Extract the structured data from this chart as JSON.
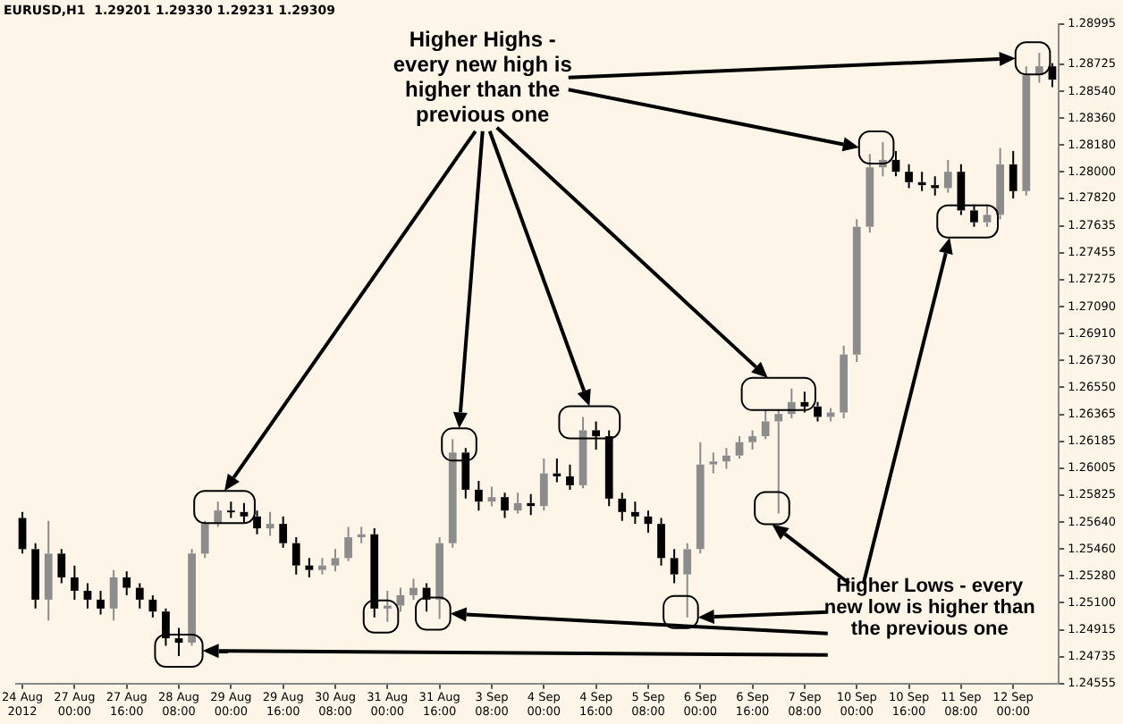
{
  "chart_data": {
    "type": "candlestick",
    "title": "EURUSD,H1  1.29201 1.29330 1.29231 1.29309",
    "categories": [
      "24 Aug 2012",
      null,
      null,
      null,
      "27 Aug 00:00",
      null,
      null,
      null,
      "27 Aug 16:00",
      null,
      null,
      null,
      "28 Aug 08:00",
      null,
      null,
      null,
      "29 Aug 00:00",
      null,
      null,
      null,
      "29 Aug 16:00",
      null,
      null,
      null,
      "30 Aug 08:00",
      null,
      null,
      null,
      "31 Aug 00:00",
      null,
      null,
      null,
      "31 Aug 16:00",
      null,
      null,
      null,
      "3 Sep 08:00",
      null,
      null,
      null,
      "4 Sep 00:00",
      null,
      null,
      null,
      "4 Sep 16:00",
      null,
      null,
      null,
      "5 Sep 08:00",
      null,
      null,
      null,
      "6 Sep 00:00",
      null,
      null,
      null,
      "6 Sep 16:00",
      null,
      null,
      null,
      "7 Sep 08:00",
      null,
      null,
      null,
      "10 Sep 00:00",
      null,
      null,
      null,
      "10 Sep 16:00",
      null,
      null,
      null,
      "11 Sep 08:00",
      null,
      null,
      null,
      "12 Sep 00:00",
      null,
      null,
      null
    ],
    "ohlc": [
      [
        1.2567,
        1.2571,
        1.2543,
        1.2546
      ],
      [
        1.2546,
        1.255,
        1.2506,
        1.2512
      ],
      [
        1.2512,
        1.2565,
        1.2498,
        1.2543
      ],
      [
        1.2543,
        1.2546,
        1.2523,
        1.2527
      ],
      [
        1.2527,
        1.2535,
        1.2512,
        1.2518
      ],
      [
        1.2518,
        1.2523,
        1.2506,
        1.2512
      ],
      [
        1.2512,
        1.2518,
        1.2502,
        1.2506
      ],
      [
        1.2506,
        1.2532,
        1.2498,
        1.2527
      ],
      [
        1.2527,
        1.2531,
        1.2515,
        1.252
      ],
      [
        1.252,
        1.2523,
        1.2506,
        1.2512
      ],
      [
        1.2512,
        1.2515,
        1.25,
        1.2504
      ],
      [
        1.2504,
        1.2506,
        1.2481,
        1.2486
      ],
      [
        1.2486,
        1.2493,
        1.2474,
        1.2483
      ],
      [
        1.2483,
        1.2546,
        1.2481,
        1.2543
      ],
      [
        1.2543,
        1.2565,
        1.254,
        1.2563
      ],
      [
        1.2563,
        1.2578,
        1.2561,
        1.2572
      ],
      [
        1.2572,
        1.2578,
        1.2567,
        1.2571
      ],
      [
        1.2571,
        1.2577,
        1.2563,
        1.2568
      ],
      [
        1.2568,
        1.2572,
        1.2556,
        1.256
      ],
      [
        1.256,
        1.2571,
        1.2555,
        1.2563
      ],
      [
        1.2563,
        1.2568,
        1.2547,
        1.255
      ],
      [
        1.255,
        1.2554,
        1.2529,
        1.2535
      ],
      [
        1.2535,
        1.254,
        1.2527,
        1.2532
      ],
      [
        1.2532,
        1.254,
        1.2529,
        1.2535
      ],
      [
        1.2535,
        1.2546,
        1.2531,
        1.254
      ],
      [
        1.254,
        1.2561,
        1.2538,
        1.2554
      ],
      [
        1.2554,
        1.2561,
        1.255,
        1.2556
      ],
      [
        1.2556,
        1.256,
        1.25,
        1.2506
      ],
      [
        1.2506,
        1.2518,
        1.2497,
        1.2508
      ],
      [
        1.2508,
        1.252,
        1.2504,
        1.2515
      ],
      [
        1.2515,
        1.2526,
        1.2512,
        1.252
      ],
      [
        1.252,
        1.2523,
        1.2504,
        1.2512
      ],
      [
        1.2512,
        1.2554,
        1.2499,
        1.255
      ],
      [
        1.255,
        1.262,
        1.2547,
        1.2611
      ],
      [
        1.2611,
        1.2614,
        1.258,
        1.2586
      ],
      [
        1.2586,
        1.2592,
        1.2572,
        1.2578
      ],
      [
        1.2578,
        1.2588,
        1.2575,
        1.2581
      ],
      [
        1.2581,
        1.2584,
        1.2567,
        1.2572
      ],
      [
        1.2572,
        1.2584,
        1.257,
        1.2577
      ],
      [
        1.2577,
        1.2583,
        1.2569,
        1.2575
      ],
      [
        1.2575,
        1.2607,
        1.2572,
        1.2597
      ],
      [
        1.2597,
        1.2607,
        1.2591,
        1.2595
      ],
      [
        1.2595,
        1.2603,
        1.2586,
        1.2589
      ],
      [
        1.2589,
        1.2635,
        1.2587,
        1.2626
      ],
      [
        1.2626,
        1.2632,
        1.2613,
        1.2622
      ],
      [
        1.2622,
        1.2626,
        1.2575,
        1.258
      ],
      [
        1.258,
        1.2584,
        1.2565,
        1.2571
      ],
      [
        1.2571,
        1.2578,
        1.2563,
        1.2568
      ],
      [
        1.2568,
        1.2572,
        1.2557,
        1.2563
      ],
      [
        1.2563,
        1.2567,
        1.2535,
        1.254
      ],
      [
        1.254,
        1.2546,
        1.2523,
        1.2529
      ],
      [
        1.2529,
        1.255,
        1.25,
        1.2546
      ],
      [
        1.2546,
        1.2618,
        1.2543,
        1.2603
      ],
      [
        1.2603,
        1.2611,
        1.2597,
        1.2605
      ],
      [
        1.2605,
        1.2614,
        1.26,
        1.2609
      ],
      [
        1.2609,
        1.2622,
        1.2607,
        1.2618
      ],
      [
        1.2618,
        1.2626,
        1.2613,
        1.2622
      ],
      [
        1.2622,
        1.264,
        1.262,
        1.2632
      ],
      [
        1.2632,
        1.264,
        1.257,
        1.2637
      ],
      [
        1.2637,
        1.2654,
        1.2634,
        1.2645
      ],
      [
        1.2645,
        1.2652,
        1.2638,
        1.2642
      ],
      [
        1.2642,
        1.2645,
        1.2632,
        1.2635
      ],
      [
        1.2635,
        1.2641,
        1.2632,
        1.2638
      ],
      [
        1.2638,
        1.2683,
        1.2634,
        1.2677
      ],
      [
        1.2677,
        1.2768,
        1.2672,
        1.2763
      ],
      [
        1.2763,
        1.2812,
        1.2759,
        1.2803
      ],
      [
        1.2803,
        1.282,
        1.2797,
        1.2808
      ],
      [
        1.2808,
        1.2814,
        1.2797,
        1.28
      ],
      [
        1.28,
        1.2805,
        1.2789,
        1.2793
      ],
      [
        1.2793,
        1.28,
        1.2787,
        1.2791
      ],
      [
        1.2791,
        1.2797,
        1.2784,
        1.2789
      ],
      [
        1.2789,
        1.2808,
        1.2786,
        1.28
      ],
      [
        1.28,
        1.2805,
        1.2771,
        1.2774
      ],
      [
        1.2774,
        1.2778,
        1.2763,
        1.2766
      ],
      [
        1.2766,
        1.2778,
        1.2763,
        1.2771
      ],
      [
        1.2771,
        1.2816,
        1.2768,
        1.2805
      ],
      [
        1.2805,
        1.2814,
        1.2782,
        1.2787
      ],
      [
        1.2787,
        1.2871,
        1.2784,
        1.2865
      ],
      [
        1.2865,
        1.288,
        1.286,
        1.2871
      ],
      [
        1.2871,
        1.2873,
        1.2857,
        1.2862
      ]
    ],
    "ylim": [
      1.24555,
      1.28995
    ],
    "yticks": [
      1.28995,
      1.28725,
      {
        "value": 1.2854,
        "label": "1.28540"
      },
      {
        "value": 1.2836,
        "label": "1.28360"
      },
      {
        "value": 1.2818,
        "label": "1.28180"
      },
      {
        "value": 1.28,
        "label": "1.28000"
      },
      {
        "value": 1.2782,
        "label": "1.27820"
      },
      1.27635,
      1.27455,
      1.27275,
      {
        "value": 1.2709,
        "label": "1.27090"
      },
      {
        "value": 1.2691,
        "label": "1.26910"
      },
      {
        "value": 1.2673,
        "label": "1.26730"
      },
      {
        "value": 1.2655,
        "label": "1.26550"
      },
      1.26365,
      1.26185,
      1.26005,
      1.25825,
      {
        "value": 1.2564,
        "label": "1.25640"
      },
      {
        "value": 1.2546,
        "label": "1.25460"
      },
      {
        "value": 1.2528,
        "label": "1.25280"
      },
      {
        "value": 1.251,
        "label": "1.25100"
      },
      1.24915,
      1.24735,
      1.24555
    ],
    "annotations": [
      "Higher Highs - every new high is higher than the previous one",
      "Higher Lows - every new low is higher than the previous one"
    ]
  }
}
